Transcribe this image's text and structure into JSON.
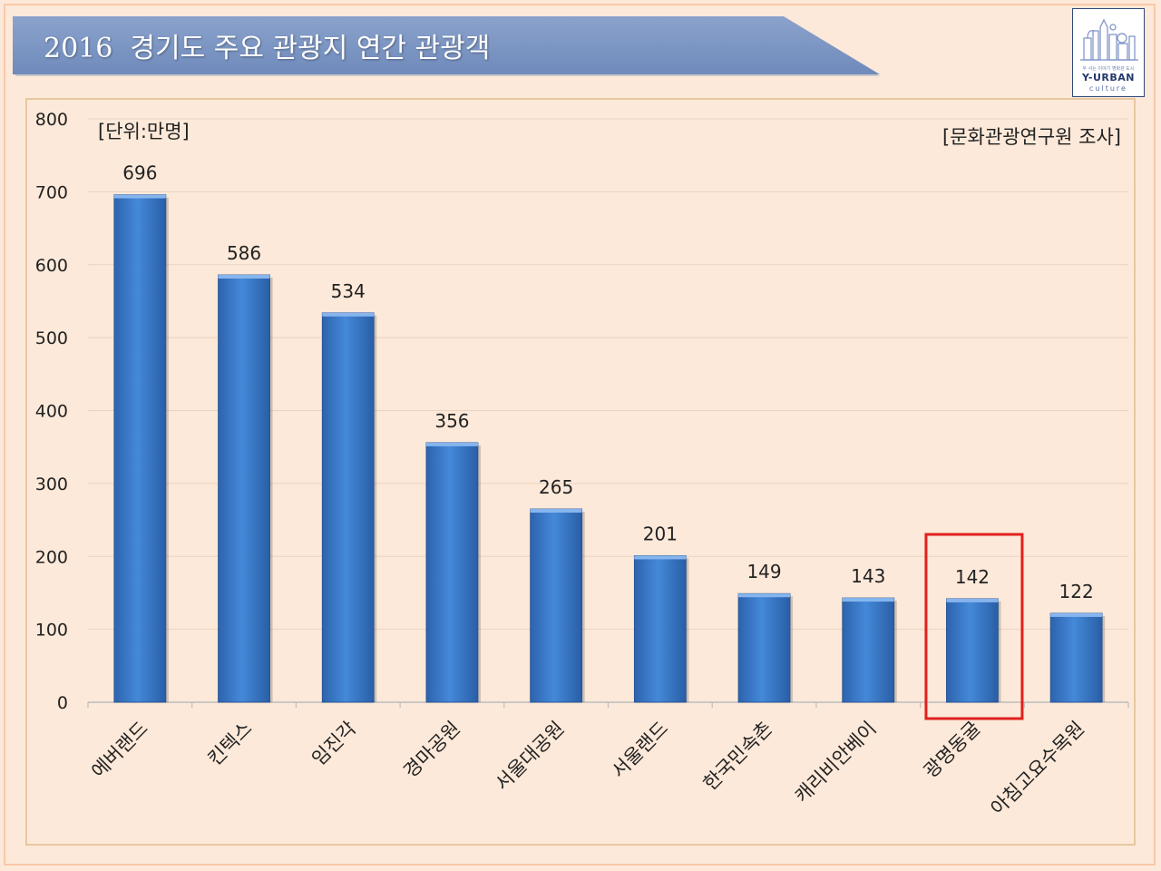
{
  "title": "2016  경기도 주요 관광지 연간 관광객",
  "logo": {
    "small_text": "두 사는 이야기 영화관 도시",
    "main_text": "Y-URBAN",
    "sub_text": "culture"
  },
  "colors": {
    "background": "#fde9d9",
    "banner": "#7f98c3",
    "bar": "#3b78c7",
    "highlight": "#e0201d"
  },
  "chart_data": {
    "type": "bar",
    "unit_note": "[단위:만명]",
    "source_note": "[문화관광연구원 조사]",
    "categories": [
      "에버랜드",
      "킨텍스",
      "임진각",
      "경마공원",
      "서울대공원",
      "서울랜드",
      "한국민속촌",
      "캐리비안베이",
      "광명동굴",
      "아침고요수목원"
    ],
    "values": [
      696,
      586,
      534,
      356,
      265,
      201,
      149,
      143,
      142,
      122
    ],
    "ylim": [
      0,
      800
    ],
    "yticks": [
      0,
      100,
      200,
      300,
      400,
      500,
      600,
      700,
      800
    ],
    "grid": true,
    "legend": "none",
    "highlighted_category": "광명동굴"
  }
}
